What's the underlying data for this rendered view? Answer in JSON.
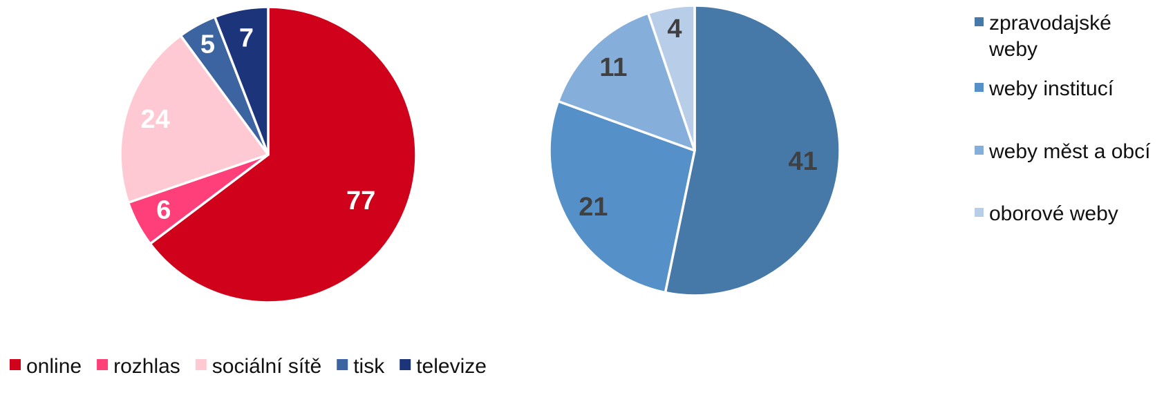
{
  "chart_data": [
    {
      "type": "pie",
      "title": "",
      "start_angle_deg": 0,
      "direction": "clockwise",
      "categories": [
        "online",
        "rozhlas",
        "sociální sítě",
        "tisk",
        "televize"
      ],
      "values": [
        77,
        6,
        24,
        5,
        7
      ],
      "colors": [
        "#d0021b",
        "#ff3f7a",
        "#ffc9d3",
        "#3c64a0",
        "#1c357a"
      ],
      "label_colors": [
        "#ffffff",
        "#ffffff",
        "#ffffff",
        "#ffffff",
        "#ffffff"
      ],
      "legend_placement": "bottom-left"
    },
    {
      "type": "pie",
      "title": "",
      "start_angle_deg": 0,
      "direction": "clockwise",
      "categories": [
        "zpravodajské weby",
        "weby institucí",
        "weby měst a obcí",
        "oborové weby"
      ],
      "legend_lines": [
        [
          "zpravodajské",
          "weby"
        ],
        [
          "weby institucí"
        ],
        [
          "weby měst a obcí"
        ],
        [
          "oborové weby"
        ]
      ],
      "values": [
        41,
        21,
        11,
        4
      ],
      "colors": [
        "#4779a8",
        "#5591c8",
        "#86aedb",
        "#b8cde8"
      ],
      "label_colors": [
        "#404040",
        "#404040",
        "#404040",
        "#404040"
      ],
      "legend_placement": "right"
    }
  ]
}
